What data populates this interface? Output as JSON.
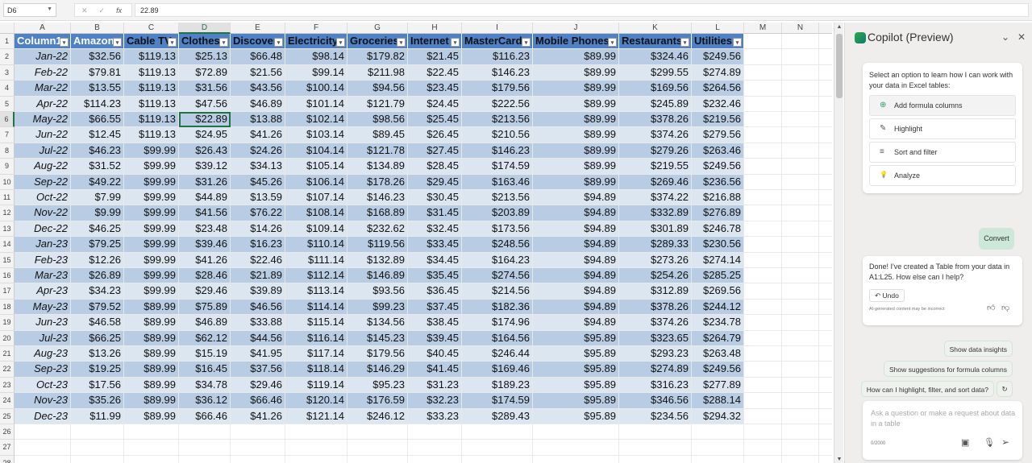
{
  "formula_bar": {
    "name_box": "D6",
    "formula": "22.89",
    "cancel_icon": "✕",
    "enter_icon": "✓",
    "fx_icon": "fx"
  },
  "columns": [
    "A",
    "B",
    "C",
    "D",
    "E",
    "F",
    "G",
    "H",
    "I",
    "J",
    "K",
    "L",
    "M",
    "N"
  ],
  "selected_cell": "D6",
  "table": {
    "headers": [
      "Column1",
      "Amazon",
      "Cable TV",
      "Clothes",
      "Discover",
      "Electricity",
      "Groceries",
      "Internet",
      "MasterCard",
      "Mobile Phones",
      "Restaurants",
      "Utilities"
    ],
    "rows": [
      [
        "Jan-22",
        "$32.56",
        "$119.13",
        "$25.13",
        "$66.48",
        "$98.14",
        "$179.82",
        "$21.45",
        "$116.23",
        "$89.99",
        "$324.46",
        "$249.56"
      ],
      [
        "Feb-22",
        "$79.81",
        "$119.13",
        "$72.89",
        "$21.56",
        "$99.14",
        "$211.98",
        "$22.45",
        "$146.23",
        "$89.99",
        "$299.55",
        "$274.89"
      ],
      [
        "Mar-22",
        "$13.55",
        "$119.13",
        "$31.56",
        "$43.56",
        "$100.14",
        "$94.56",
        "$23.45",
        "$179.56",
        "$89.99",
        "$169.56",
        "$264.56"
      ],
      [
        "Apr-22",
        "$114.23",
        "$119.13",
        "$47.56",
        "$46.89",
        "$101.14",
        "$121.79",
        "$24.45",
        "$222.56",
        "$89.99",
        "$245.89",
        "$232.46"
      ],
      [
        "May-22",
        "$66.55",
        "$119.13",
        "$22.89",
        "$13.88",
        "$102.14",
        "$98.56",
        "$25.45",
        "$213.56",
        "$89.99",
        "$378.26",
        "$219.56"
      ],
      [
        "Jun-22",
        "$12.45",
        "$119.13",
        "$24.95",
        "$41.26",
        "$103.14",
        "$89.45",
        "$26.45",
        "$210.56",
        "$89.99",
        "$374.26",
        "$279.56"
      ],
      [
        "Jul-22",
        "$46.23",
        "$99.99",
        "$26.43",
        "$24.26",
        "$104.14",
        "$121.78",
        "$27.45",
        "$146.23",
        "$89.99",
        "$279.26",
        "$263.46"
      ],
      [
        "Aug-22",
        "$31.52",
        "$99.99",
        "$39.12",
        "$34.13",
        "$105.14",
        "$134.89",
        "$28.45",
        "$174.59",
        "$89.99",
        "$219.55",
        "$249.56"
      ],
      [
        "Sep-22",
        "$49.22",
        "$99.99",
        "$31.26",
        "$45.26",
        "$106.14",
        "$178.26",
        "$29.45",
        "$163.46",
        "$89.99",
        "$269.46",
        "$236.56"
      ],
      [
        "Oct-22",
        "$7.99",
        "$99.99",
        "$44.89",
        "$13.59",
        "$107.14",
        "$146.23",
        "$30.45",
        "$213.56",
        "$94.89",
        "$374.22",
        "$216.88"
      ],
      [
        "Nov-22",
        "$9.99",
        "$99.99",
        "$41.56",
        "$76.22",
        "$108.14",
        "$168.89",
        "$31.45",
        "$203.89",
        "$94.89",
        "$332.89",
        "$276.89"
      ],
      [
        "Dec-22",
        "$46.25",
        "$99.99",
        "$23.48",
        "$14.26",
        "$109.14",
        "$232.62",
        "$32.45",
        "$173.56",
        "$94.89",
        "$301.89",
        "$246.78"
      ],
      [
        "Jan-23",
        "$79.25",
        "$99.99",
        "$39.46",
        "$16.23",
        "$110.14",
        "$119.56",
        "$33.45",
        "$248.56",
        "$94.89",
        "$289.33",
        "$230.56"
      ],
      [
        "Feb-23",
        "$12.26",
        "$99.99",
        "$41.26",
        "$22.46",
        "$111.14",
        "$132.89",
        "$34.45",
        "$164.23",
        "$94.89",
        "$273.26",
        "$274.14"
      ],
      [
        "Mar-23",
        "$26.89",
        "$99.99",
        "$28.46",
        "$21.89",
        "$112.14",
        "$146.89",
        "$35.45",
        "$274.56",
        "$94.89",
        "$254.26",
        "$285.25"
      ],
      [
        "Apr-23",
        "$34.23",
        "$99.99",
        "$29.46",
        "$39.89",
        "$113.14",
        "$93.56",
        "$36.45",
        "$214.56",
        "$94.89",
        "$312.89",
        "$269.56"
      ],
      [
        "May-23",
        "$79.52",
        "$89.99",
        "$75.89",
        "$46.56",
        "$114.14",
        "$99.23",
        "$37.45",
        "$182.36",
        "$94.89",
        "$378.26",
        "$244.12"
      ],
      [
        "Jun-23",
        "$46.58",
        "$89.99",
        "$46.89",
        "$33.88",
        "$115.14",
        "$134.56",
        "$38.45",
        "$174.96",
        "$94.89",
        "$374.26",
        "$234.78"
      ],
      [
        "Jul-23",
        "$66.25",
        "$89.99",
        "$62.12",
        "$44.56",
        "$116.14",
        "$145.23",
        "$39.45",
        "$164.56",
        "$95.89",
        "$323.65",
        "$264.79"
      ],
      [
        "Aug-23",
        "$13.26",
        "$89.99",
        "$15.19",
        "$41.95",
        "$117.14",
        "$179.56",
        "$40.45",
        "$246.44",
        "$95.89",
        "$293.23",
        "$263.48"
      ],
      [
        "Sep-23",
        "$19.25",
        "$89.99",
        "$16.45",
        "$37.56",
        "$118.14",
        "$146.29",
        "$41.45",
        "$169.46",
        "$95.89",
        "$274.89",
        "$249.56"
      ],
      [
        "Oct-23",
        "$17.56",
        "$89.99",
        "$34.78",
        "$29.46",
        "$119.14",
        "$95.23",
        "$31.23",
        "$189.23",
        "$95.89",
        "$316.23",
        "$277.89"
      ],
      [
        "Nov-23",
        "$35.26",
        "$89.99",
        "$36.12",
        "$66.46",
        "$120.14",
        "$176.59",
        "$32.23",
        "$174.59",
        "$95.89",
        "$346.56",
        "$288.14"
      ],
      [
        "Dec-23",
        "$11.99",
        "$89.99",
        "$66.46",
        "$41.26",
        "$121.14",
        "$246.12",
        "$33.23",
        "$289.43",
        "$95.89",
        "$234.56",
        "$294.32"
      ]
    ]
  },
  "colors": {
    "header": "#4f81c7",
    "band_dark": "#b8cce4",
    "band_light": "#dce6f1",
    "accent": "#217346"
  },
  "copilot": {
    "title": "Copilot (Preview)",
    "intro": "Select an option to learn how I can work with your data in Excel tables:",
    "options": [
      {
        "label": "Add formula columns",
        "icon": "⊕"
      },
      {
        "label": "Highlight",
        "icon": "✎"
      },
      {
        "label": "Sort and filter",
        "icon": "≡"
      },
      {
        "label": "Analyze",
        "icon": "💡"
      }
    ],
    "user_message": "Convert",
    "reply": "Done! I've created a Table from your data in A1:L25. How else can I help?",
    "undo": "Undo",
    "disclaimer": "AI-generated content may be incorrect",
    "suggestions": [
      "Show data insights",
      "Show suggestions for formula columns",
      "How can I highlight, filter, and sort data?"
    ],
    "input_placeholder": "Ask a question or make a request about data in a table",
    "char_count": "0/2000"
  }
}
